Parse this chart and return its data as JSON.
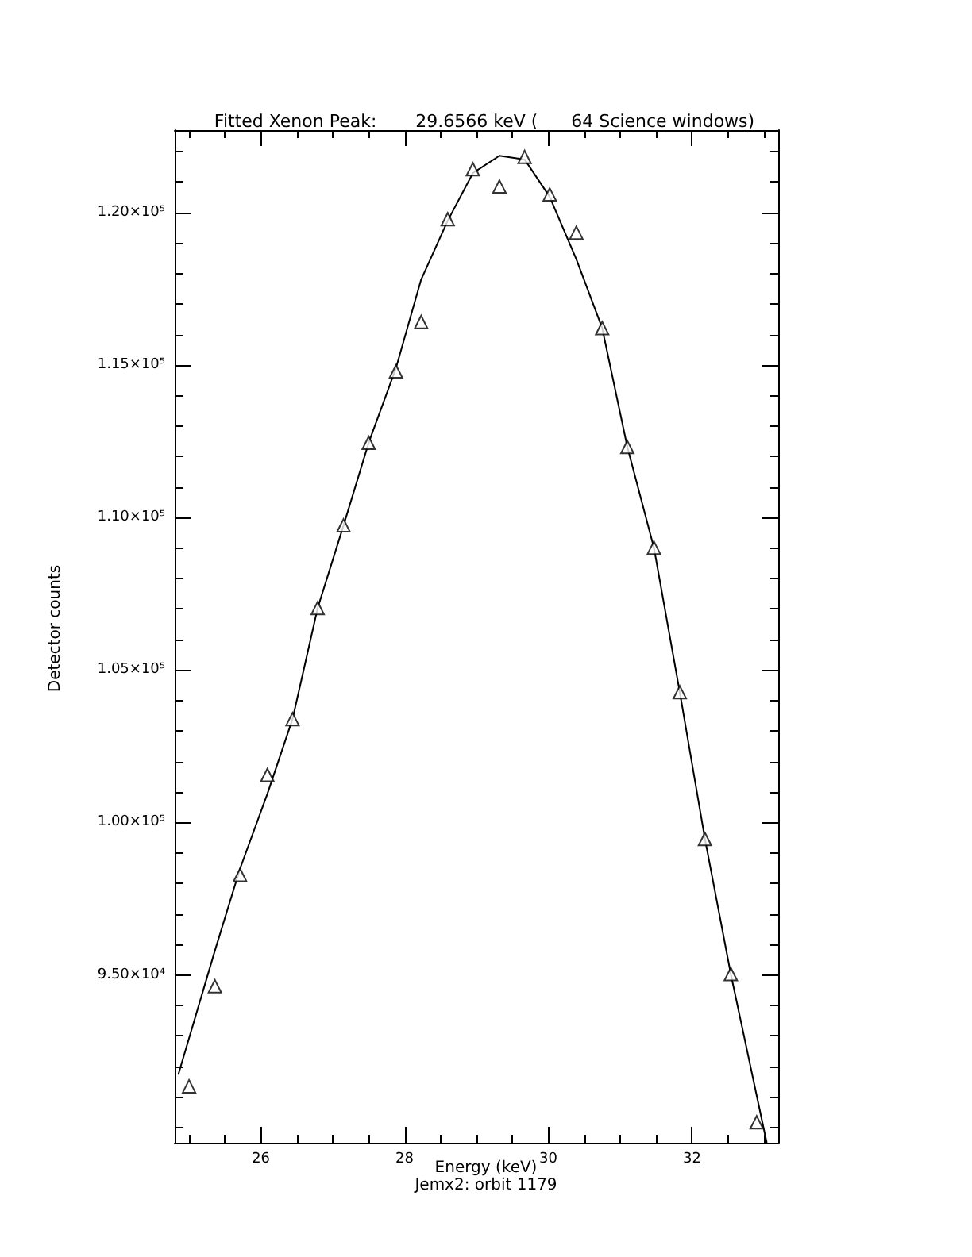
{
  "chart_data": {
    "type": "scatter",
    "title": "Fitted Xenon Peak:       29.6566 keV (      64 Science windows)",
    "xlabel": "Energy (keV)",
    "ylabel": "Detector counts",
    "annotations": [
      "Jemx2: orbit 1179"
    ],
    "xlim": [
      24.8,
      33.2
    ],
    "xticks": [
      {
        "value": 25,
        "label": null
      },
      {
        "value": 25.5,
        "label": null
      },
      26,
      {
        "value": 26.5,
        "label": null
      },
      {
        "value": 27,
        "label": null
      },
      {
        "value": 27.5,
        "label": null
      },
      28,
      {
        "value": 28.5,
        "label": null
      },
      {
        "value": 29,
        "label": null
      },
      {
        "value": 29.5,
        "label": null
      },
      30,
      {
        "value": 30.5,
        "label": null
      },
      {
        "value": 31,
        "label": null
      },
      {
        "value": 31.5,
        "label": null
      },
      32,
      {
        "value": 32.5,
        "label": null
      },
      {
        "value": 33,
        "label": null
      }
    ],
    "ylim": [
      89500,
      122700
    ],
    "yticks": [
      {
        "value": 90000,
        "label": null
      },
      {
        "value": 91000,
        "label": null
      },
      {
        "value": 92000,
        "label": null
      },
      {
        "value": 93000,
        "label": null
      },
      {
        "value": 94000,
        "label": null
      },
      {
        "value": 95000,
        "label": "9.50×10⁴"
      },
      {
        "value": 96000,
        "label": null
      },
      {
        "value": 97000,
        "label": null
      },
      {
        "value": 98000,
        "label": null
      },
      {
        "value": 99000,
        "label": null
      },
      {
        "value": 100000,
        "label": "1.00×10⁵"
      },
      {
        "value": 101000,
        "label": null
      },
      {
        "value": 102000,
        "label": null
      },
      {
        "value": 103000,
        "label": null
      },
      {
        "value": 104000,
        "label": null
      },
      {
        "value": 105000,
        "label": "1.05×10⁵"
      },
      {
        "value": 106000,
        "label": null
      },
      {
        "value": 107000,
        "label": null
      },
      {
        "value": 108000,
        "label": null
      },
      {
        "value": 109000,
        "label": null
      },
      {
        "value": 110000,
        "label": "1.10×10⁵"
      },
      {
        "value": 111000,
        "label": null
      },
      {
        "value": 112000,
        "label": null
      },
      {
        "value": 113000,
        "label": null
      },
      {
        "value": 114000,
        "label": null
      },
      {
        "value": 115000,
        "label": "1.15×10⁵"
      },
      {
        "value": 116000,
        "label": null
      },
      {
        "value": 117000,
        "label": null
      },
      {
        "value": 118000,
        "label": null
      },
      {
        "value": 119000,
        "label": null
      },
      {
        "value": 120000,
        "label": "1.20×10⁵"
      },
      {
        "value": 121000,
        "label": null
      },
      {
        "value": 122000,
        "label": null
      }
    ],
    "grid": false,
    "series": [
      {
        "marker": "triangle",
        "color": "#000000",
        "x": [
          25.0,
          25.36,
          25.71,
          26.09,
          26.44,
          26.79,
          27.15,
          27.5,
          27.88,
          28.23,
          28.6,
          28.95,
          29.32,
          29.67,
          30.02,
          30.39,
          30.75,
          31.1,
          31.47,
          31.83,
          32.18,
          32.54,
          32.9
        ],
        "values": [
          91350,
          94630,
          98280,
          101560,
          103390,
          107030,
          109740,
          112450,
          114790,
          116410,
          119780,
          121420,
          120850,
          121820,
          120590,
          119340,
          116210,
          112310,
          109010,
          104270,
          99460,
          95030,
          90170
        ]
      },
      {
        "type": "line",
        "marker": "none",
        "line_style": "solid",
        "color": "#000000",
        "x": [
          24.85,
          25.36,
          25.71,
          26.09,
          26.44,
          26.79,
          27.15,
          27.5,
          27.88,
          28.23,
          28.6,
          28.95,
          29.32,
          29.67,
          30.02,
          30.39,
          30.75,
          31.1,
          31.47,
          31.83,
          32.18,
          32.54,
          33.04
        ],
        "values": [
          91730,
          95800,
          98490,
          100940,
          103390,
          107030,
          109740,
          112450,
          114900,
          117800,
          119730,
          121290,
          121860,
          121740,
          120510,
          118470,
          116210,
          112310,
          109010,
          104270,
          99460,
          95030,
          89500
        ]
      }
    ]
  }
}
